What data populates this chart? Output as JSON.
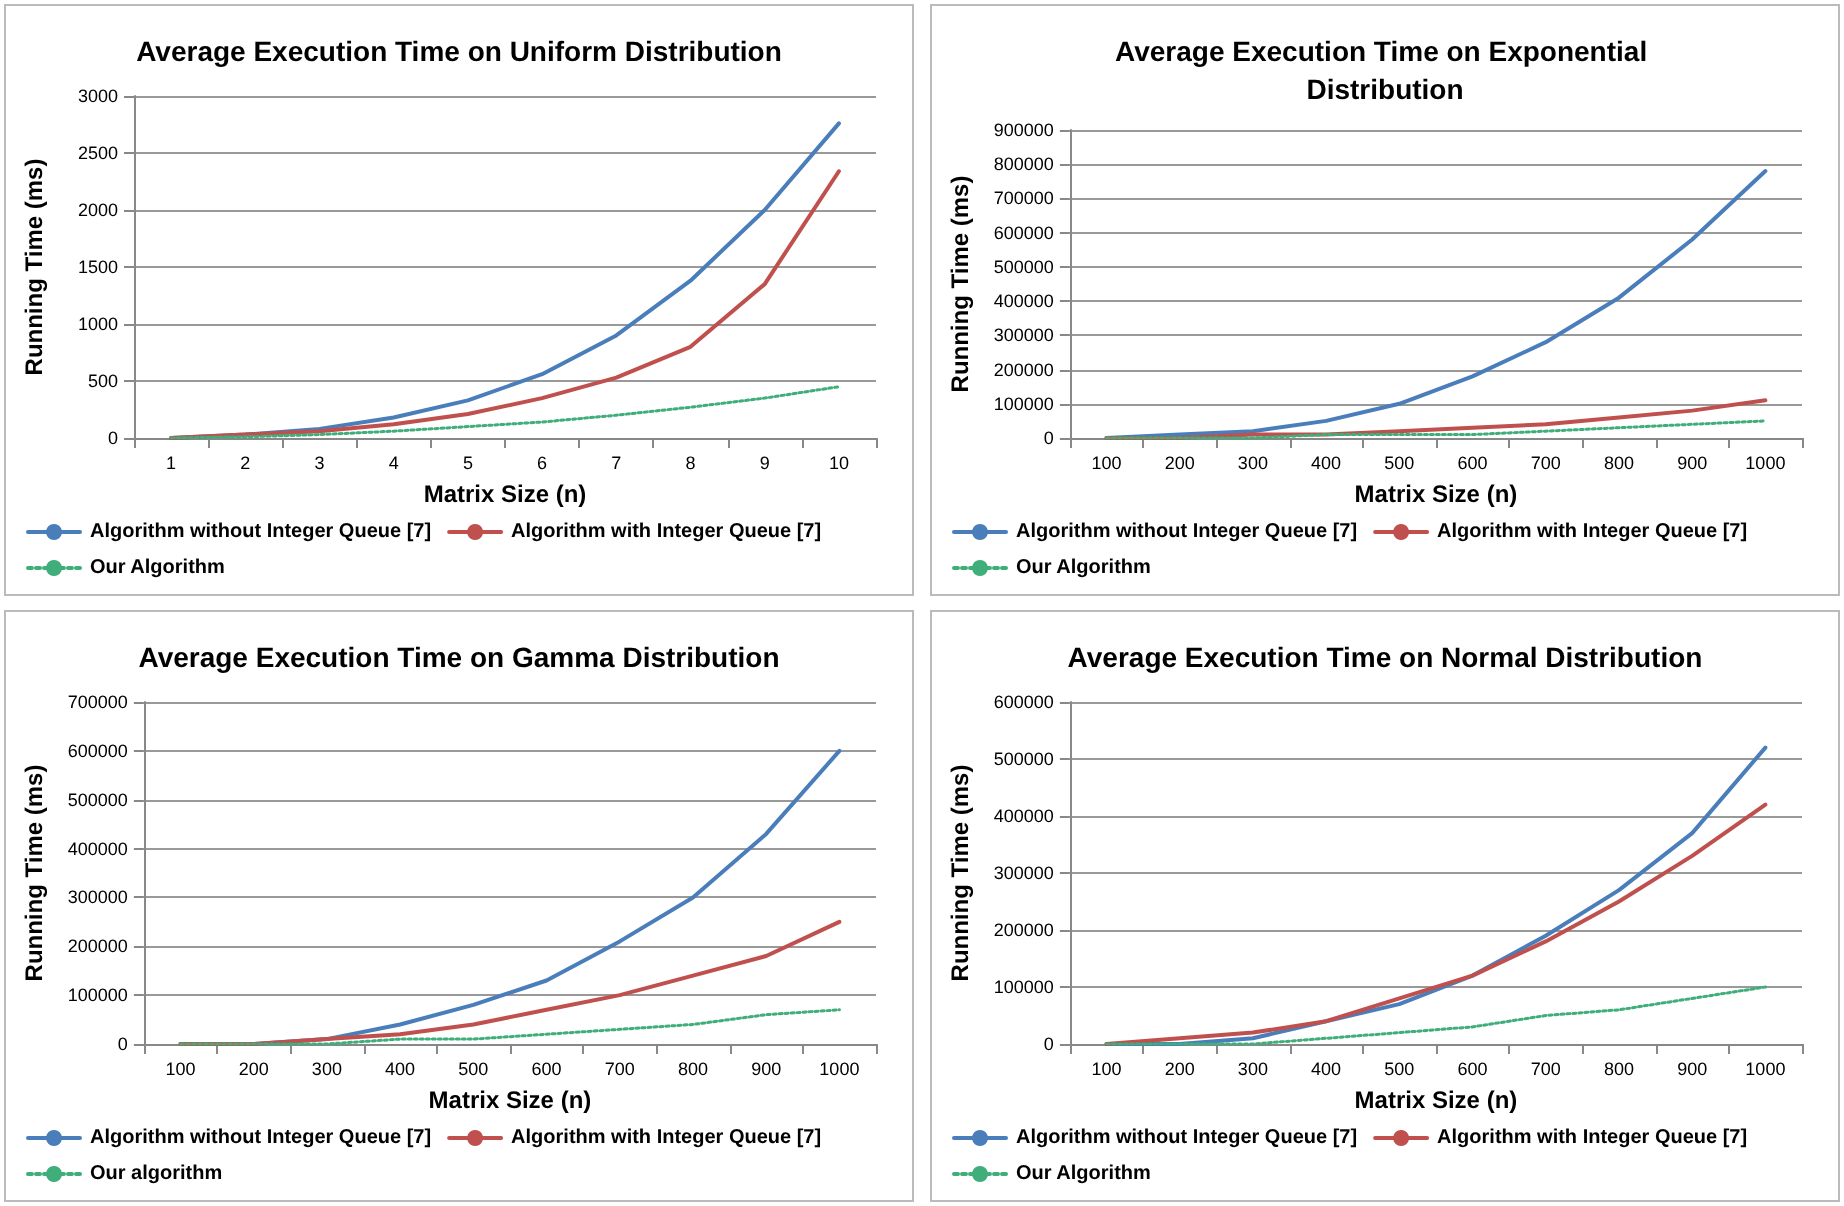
{
  "chart_data": [
    {
      "type": "line",
      "title": "Average Execution Time on Uniform Distribution",
      "xlabel": "Matrix Size (n)",
      "ylabel": "Running Time (ms)",
      "categories": [
        "1",
        "2",
        "3",
        "4",
        "5",
        "6",
        "7",
        "8",
        "9",
        "10"
      ],
      "ylim": [
        0,
        3000
      ],
      "yticks": [
        0,
        500,
        1000,
        1500,
        2000,
        2500,
        3000
      ],
      "grid": "y",
      "legend": "bottom",
      "marker": "none",
      "series": [
        {
          "name": "Algorithm without Integer Queue [7]",
          "color": "#4a7ebb",
          "line_style": "solid",
          "values": [
            0,
            30,
            80,
            180,
            330,
            560,
            900,
            1380,
            2000,
            2760
          ]
        },
        {
          "name": "Algorithm with Integer Queue [7]",
          "color": "#c0504d",
          "line_style": "solid",
          "values": [
            0,
            30,
            60,
            120,
            210,
            350,
            530,
            800,
            1350,
            2340
          ]
        },
        {
          "name": "Our Algorithm",
          "color": "#3fae7a",
          "line_style": "dotted",
          "values": [
            0,
            10,
            30,
            60,
            100,
            140,
            200,
            270,
            350,
            450
          ]
        }
      ]
    },
    {
      "type": "line",
      "title": "Average Execution Time on Exponential Distribution",
      "xlabel": "Matrix Size (n)",
      "ylabel": "Running Time (ms)",
      "categories": [
        "100",
        "200",
        "300",
        "400",
        "500",
        "600",
        "700",
        "800",
        "900",
        "1000"
      ],
      "ylim": [
        0,
        900000
      ],
      "yticks": [
        0,
        100000,
        200000,
        300000,
        400000,
        500000,
        600000,
        700000,
        800000,
        900000
      ],
      "grid": "y",
      "legend": "bottom",
      "marker": "none",
      "series": [
        {
          "name": "Algorithm without Integer Queue [7]",
          "color": "#4a7ebb",
          "line_style": "solid",
          "values": [
            0,
            10000,
            20000,
            50000,
            100000,
            180000,
            280000,
            410000,
            580000,
            780000
          ]
        },
        {
          "name": "Algorithm with Integer Queue [7]",
          "color": "#c0504d",
          "line_style": "solid",
          "values": [
            0,
            0,
            10000,
            10000,
            20000,
            30000,
            40000,
            60000,
            80000,
            110000
          ]
        },
        {
          "name": "Our Algorithm",
          "color": "#3fae7a",
          "line_style": "dotted",
          "values": [
            0,
            0,
            0,
            10000,
            10000,
            10000,
            20000,
            30000,
            40000,
            50000
          ]
        }
      ]
    },
    {
      "type": "line",
      "title": "Average Execution Time on Gamma Distribution",
      "xlabel": "Matrix Size (n)",
      "ylabel": "Running Time (ms)",
      "categories": [
        "100",
        "200",
        "300",
        "400",
        "500",
        "600",
        "700",
        "800",
        "900",
        "1000"
      ],
      "ylim": [
        0,
        700000
      ],
      "yticks": [
        0,
        100000,
        200000,
        300000,
        400000,
        500000,
        600000,
        700000
      ],
      "grid": "y",
      "legend": "bottom",
      "marker": "none",
      "series": [
        {
          "name": "Algorithm without Integer Queue [7]",
          "color": "#4a7ebb",
          "line_style": "solid",
          "values": [
            0,
            0,
            10000,
            40000,
            80000,
            130000,
            210000,
            300000,
            430000,
            600000
          ]
        },
        {
          "name": "Algorithm with Integer Queue [7]",
          "color": "#c0504d",
          "line_style": "solid",
          "values": [
            0,
            0,
            10000,
            20000,
            40000,
            70000,
            100000,
            140000,
            180000,
            250000
          ]
        },
        {
          "name": "Our algorithm",
          "color": "#3fae7a",
          "line_style": "dotted",
          "values": [
            0,
            0,
            0,
            10000,
            10000,
            20000,
            30000,
            40000,
            60000,
            70000
          ]
        }
      ]
    },
    {
      "type": "line",
      "title": "Average Execution Time on Normal Distribution",
      "xlabel": "Matrix Size (n)",
      "ylabel": "Running Time (ms)",
      "categories": [
        "100",
        "200",
        "300",
        "400",
        "500",
        "600",
        "700",
        "800",
        "900",
        "1000"
      ],
      "ylim": [
        0,
        600000
      ],
      "yticks": [
        0,
        100000,
        200000,
        300000,
        400000,
        500000,
        600000
      ],
      "grid": "y",
      "legend": "bottom",
      "marker": "none",
      "series": [
        {
          "name": "Algorithm without Integer Queue [7]",
          "color": "#4a7ebb",
          "line_style": "solid",
          "values": [
            0,
            0,
            10000,
            40000,
            70000,
            120000,
            190000,
            270000,
            370000,
            520000
          ]
        },
        {
          "name": "Algorithm with Integer Queue [7]",
          "color": "#c0504d",
          "line_style": "solid",
          "values": [
            0,
            10000,
            20000,
            40000,
            80000,
            120000,
            180000,
            250000,
            330000,
            420000
          ]
        },
        {
          "name": "Our Algorithm",
          "color": "#3fae7a",
          "line_style": "dotted",
          "values": [
            0,
            0,
            0,
            10000,
            20000,
            30000,
            50000,
            60000,
            80000,
            100000
          ]
        }
      ]
    }
  ]
}
